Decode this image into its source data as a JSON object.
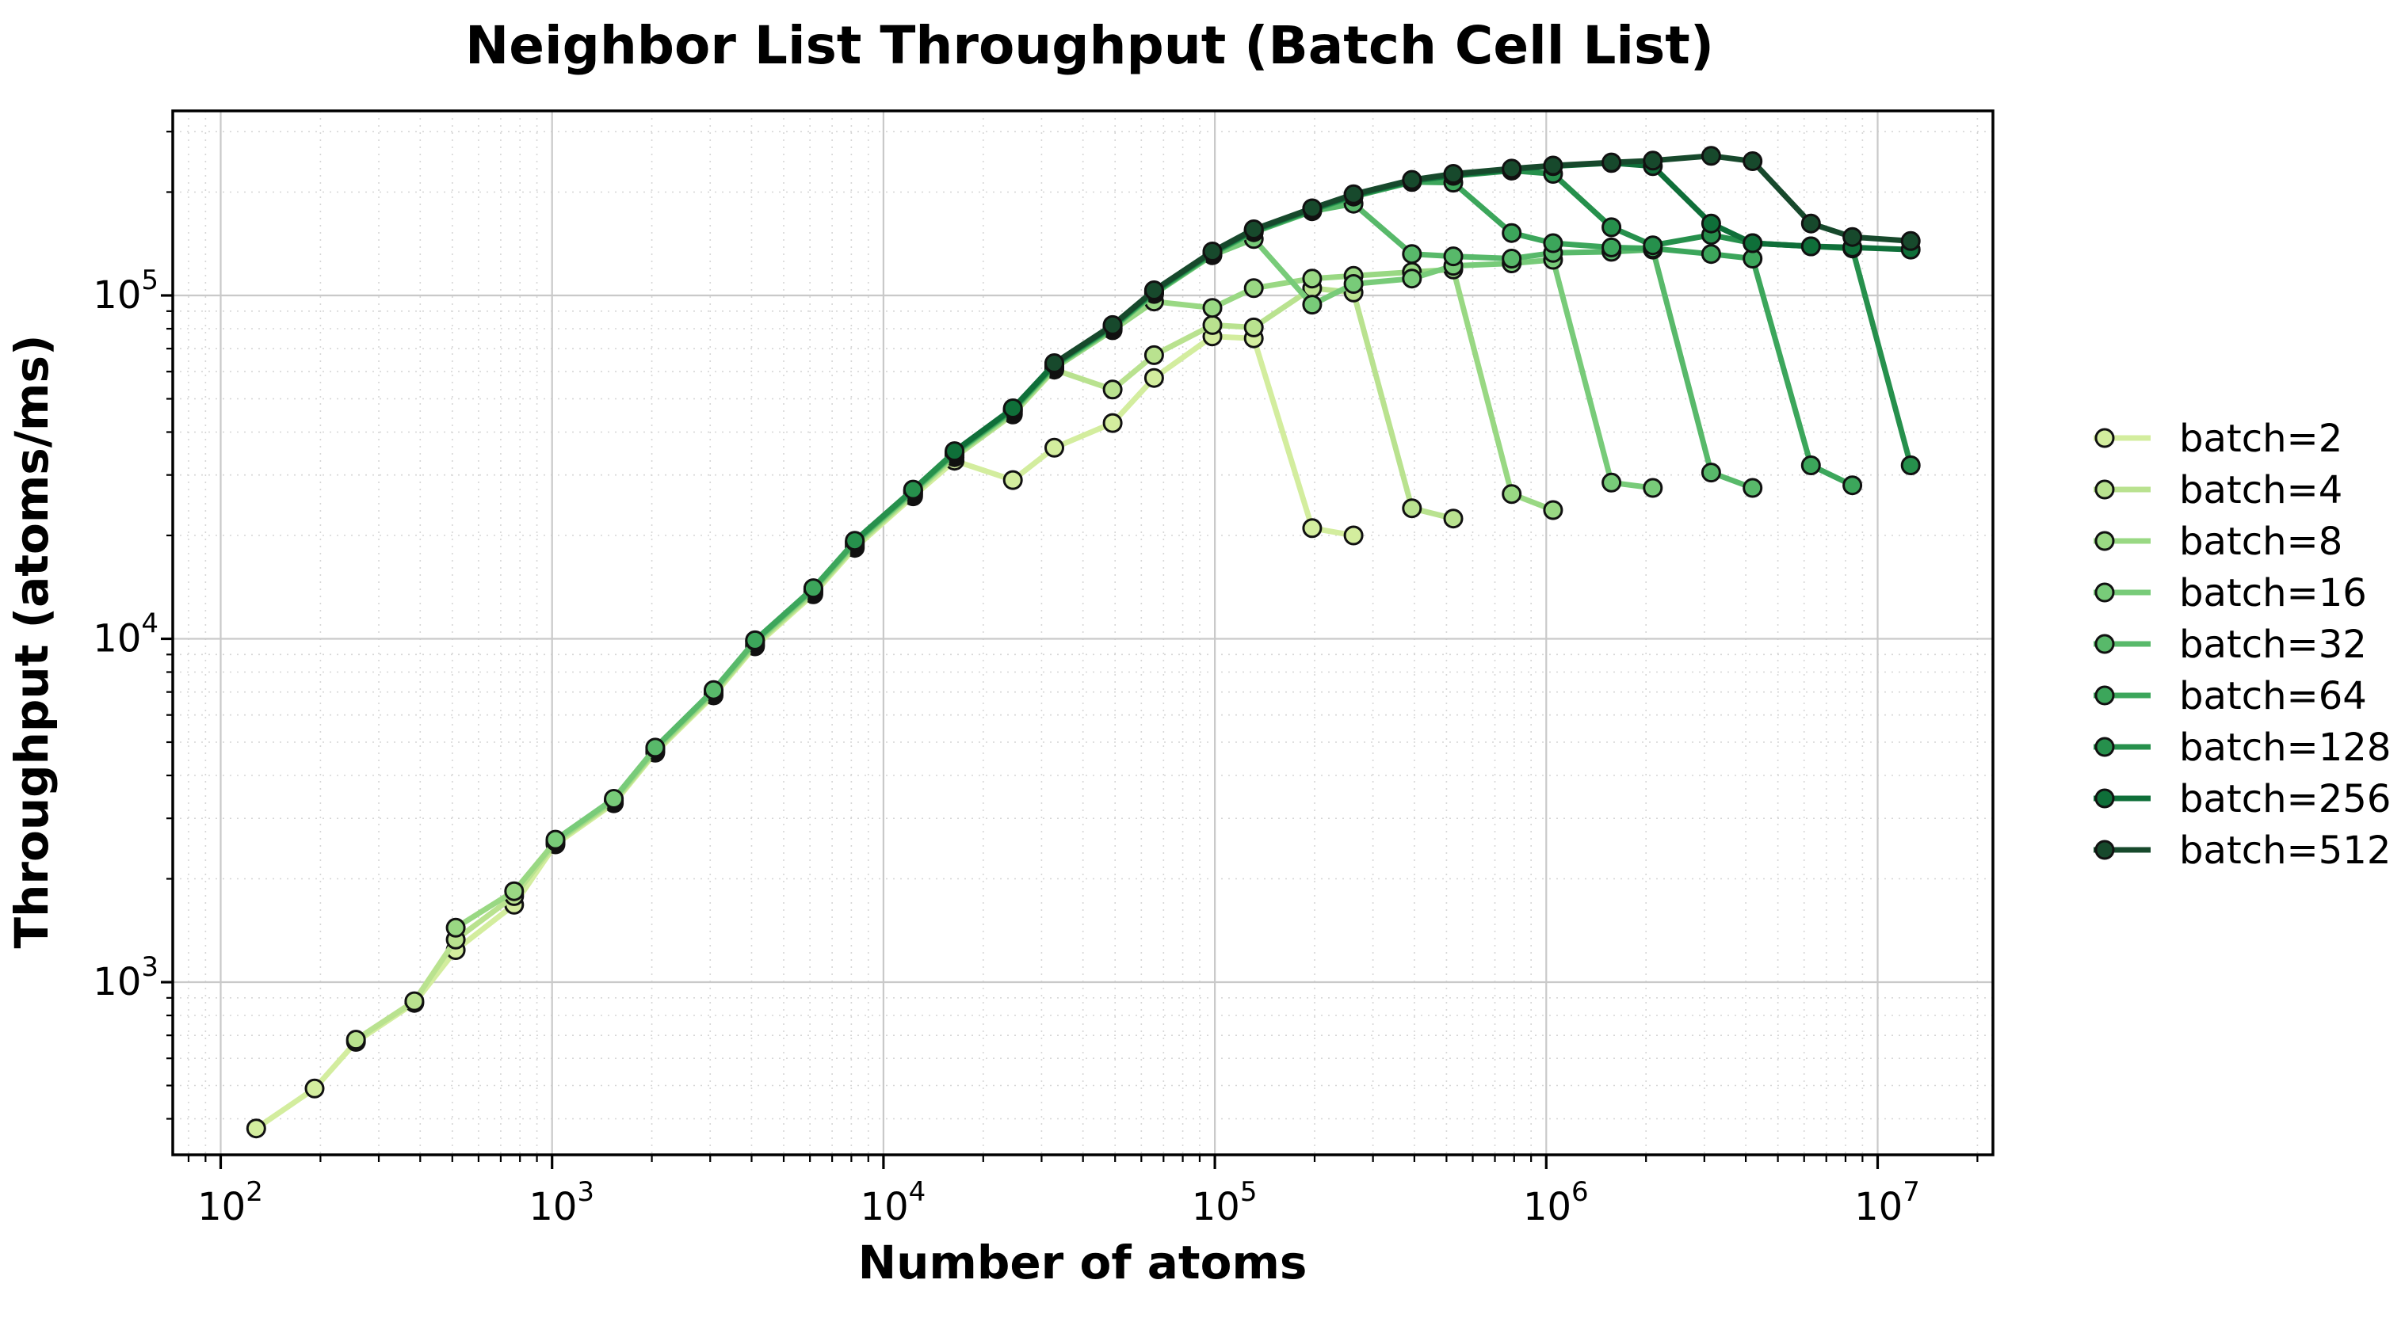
{
  "chart_data": {
    "type": "line",
    "title": "Neighbor List Throughput (Batch Cell List)",
    "xlabel": "Number of atoms",
    "ylabel": "Throughput (atoms/ms)",
    "x_scale": "log",
    "y_scale": "log",
    "xlim": [
      70,
      22300000
    ],
    "ylim": [
      314,
      344000
    ],
    "x_major_tick_exponents": [
      2,
      3,
      4,
      5,
      6,
      7
    ],
    "y_major_tick_exponents": [
      3,
      4,
      5
    ],
    "grid": true,
    "legend_position": "right",
    "series": [
      {
        "name": "batch=2",
        "color": "#d3ed9e",
        "points": [
          [
            128,
            375
          ],
          [
            192,
            490
          ],
          [
            256,
            670
          ],
          [
            384,
            870
          ],
          [
            512,
            1240
          ],
          [
            768,
            1680
          ],
          [
            1024,
            2520
          ],
          [
            1536,
            3320
          ],
          [
            2048,
            4660
          ],
          [
            3072,
            6840
          ],
          [
            4096,
            9510
          ],
          [
            6144,
            13480
          ],
          [
            8192,
            18400
          ],
          [
            12288,
            26000
          ],
          [
            16384,
            33000
          ],
          [
            24576,
            29000
          ],
          [
            32768,
            36000
          ],
          [
            49152,
            42500
          ],
          [
            65536,
            57500
          ],
          [
            98304,
            76000
          ],
          [
            131072,
            75000
          ],
          [
            196608,
            21000
          ],
          [
            262144,
            20000
          ]
        ]
      },
      {
        "name": "batch=4",
        "color": "#b9e28f",
        "points": [
          [
            256,
            680
          ],
          [
            384,
            880
          ],
          [
            512,
            1330
          ],
          [
            768,
            1780
          ],
          [
            1024,
            2550
          ],
          [
            1536,
            3350
          ],
          [
            2048,
            4700
          ],
          [
            3072,
            6910
          ],
          [
            4096,
            9600
          ],
          [
            6144,
            13620
          ],
          [
            8192,
            18600
          ],
          [
            12288,
            26300
          ],
          [
            16384,
            33800
          ],
          [
            24576,
            45000
          ],
          [
            32768,
            60800
          ],
          [
            49152,
            53200
          ],
          [
            65536,
            67000
          ],
          [
            98304,
            82000
          ],
          [
            131072,
            80700
          ],
          [
            196608,
            105000
          ],
          [
            262144,
            102000
          ],
          [
            393216,
            24000
          ],
          [
            524288,
            22400
          ]
        ]
      },
      {
        "name": "batch=8",
        "color": "#99d883",
        "points": [
          [
            512,
            1440
          ],
          [
            768,
            1840
          ],
          [
            1024,
            2570
          ],
          [
            1536,
            3390
          ],
          [
            2048,
            4750
          ],
          [
            3072,
            6980
          ],
          [
            4096,
            9700
          ],
          [
            6144,
            13760
          ],
          [
            8192,
            18800
          ],
          [
            12288,
            26500
          ],
          [
            16384,
            34200
          ],
          [
            24576,
            45500
          ],
          [
            32768,
            61400
          ],
          [
            49152,
            79200
          ],
          [
            65536,
            96000
          ],
          [
            98304,
            92000
          ],
          [
            131072,
            105000
          ],
          [
            196608,
            112000
          ],
          [
            262144,
            114000
          ],
          [
            393216,
            117000
          ],
          [
            524288,
            119000
          ],
          [
            786432,
            26400
          ],
          [
            1048576,
            23700
          ]
        ]
      },
      {
        "name": "batch=16",
        "color": "#78cb79",
        "points": [
          [
            1024,
            2600
          ],
          [
            1536,
            3420
          ],
          [
            2048,
            4800
          ],
          [
            3072,
            7050
          ],
          [
            4096,
            9800
          ],
          [
            6144,
            13900
          ],
          [
            8192,
            19000
          ],
          [
            12288,
            26800
          ],
          [
            16384,
            34500
          ],
          [
            24576,
            46000
          ],
          [
            32768,
            62000
          ],
          [
            49152,
            80000
          ],
          [
            65536,
            101000
          ],
          [
            98304,
            131000
          ],
          [
            131072,
            146000
          ],
          [
            196608,
            94000
          ],
          [
            262144,
            108000
          ],
          [
            393216,
            112000
          ],
          [
            524288,
            122000
          ],
          [
            786432,
            124000
          ],
          [
            1048576,
            127000
          ],
          [
            1572864,
            28500
          ],
          [
            2097152,
            27500
          ]
        ]
      },
      {
        "name": "batch=32",
        "color": "#58b96a",
        "points": [
          [
            2048,
            4820
          ],
          [
            3072,
            7090
          ],
          [
            4096,
            9850
          ],
          [
            6144,
            13970
          ],
          [
            8192,
            19100
          ],
          [
            12288,
            26900
          ],
          [
            16384,
            34700
          ],
          [
            24576,
            46200
          ],
          [
            32768,
            62300
          ],
          [
            49152,
            80400
          ],
          [
            65536,
            101500
          ],
          [
            98304,
            131700
          ],
          [
            131072,
            152800
          ],
          [
            196608,
            175900
          ],
          [
            262144,
            185000
          ],
          [
            393216,
            132000
          ],
          [
            524288,
            130000
          ],
          [
            786432,
            128000
          ],
          [
            1048576,
            133000
          ],
          [
            1572864,
            134000
          ],
          [
            2097152,
            136000
          ],
          [
            3145728,
            30500
          ],
          [
            4194304,
            27500
          ]
        ]
      },
      {
        "name": "batch=64",
        "color": "#3ca65b",
        "points": [
          [
            4096,
            9900
          ],
          [
            6144,
            14040
          ],
          [
            8192,
            19200
          ],
          [
            12288,
            27100
          ],
          [
            16384,
            34800
          ],
          [
            24576,
            46500
          ],
          [
            32768,
            62600
          ],
          [
            49152,
            80800
          ],
          [
            65536,
            102000
          ],
          [
            98304,
            132300
          ],
          [
            131072,
            153500
          ],
          [
            196608,
            176800
          ],
          [
            262144,
            194000
          ],
          [
            393216,
            214000
          ],
          [
            524288,
            213000
          ],
          [
            786432,
            152000
          ],
          [
            1048576,
            142000
          ],
          [
            1572864,
            138000
          ],
          [
            2097152,
            137000
          ],
          [
            3145728,
            132000
          ],
          [
            4194304,
            128000
          ],
          [
            6291456,
            32000
          ],
          [
            8388608,
            28000
          ]
        ]
      },
      {
        "name": "batch=128",
        "color": "#26904c",
        "points": [
          [
            8192,
            19300
          ],
          [
            12288,
            27200
          ],
          [
            16384,
            35000
          ],
          [
            24576,
            46700
          ],
          [
            32768,
            62900
          ],
          [
            49152,
            81200
          ],
          [
            65536,
            102500
          ],
          [
            98304,
            133000
          ],
          [
            131072,
            154300
          ],
          [
            196608,
            177600
          ],
          [
            262144,
            195000
          ],
          [
            393216,
            215000
          ],
          [
            524288,
            223000
          ],
          [
            786432,
            231000
          ],
          [
            1048576,
            226000
          ],
          [
            1572864,
            158000
          ],
          [
            2097152,
            140000
          ],
          [
            3145728,
            150000
          ],
          [
            4194304,
            142000
          ],
          [
            6291456,
            139000
          ],
          [
            8388608,
            137000
          ],
          [
            12582912,
            32000
          ]
        ]
      },
      {
        "name": "batch=256",
        "color": "#0f6f39",
        "points": [
          [
            16384,
            35200
          ],
          [
            24576,
            46900
          ],
          [
            32768,
            63200
          ],
          [
            49152,
            81600
          ],
          [
            65536,
            103000
          ],
          [
            98304,
            133600
          ],
          [
            131072,
            155000
          ],
          [
            196608,
            178500
          ],
          [
            262144,
            196000
          ],
          [
            393216,
            216000
          ],
          [
            524288,
            224000
          ],
          [
            786432,
            233000
          ],
          [
            1048576,
            238000
          ],
          [
            1572864,
            243000
          ],
          [
            2097152,
            238000
          ],
          [
            3145728,
            162000
          ],
          [
            4194304,
            142000
          ],
          [
            6291456,
            139000
          ],
          [
            8388608,
            138000
          ],
          [
            12582912,
            136000
          ]
        ]
      },
      {
        "name": "batch=512",
        "color": "#17492c",
        "points": [
          [
            32768,
            63500
          ],
          [
            49152,
            82000
          ],
          [
            65536,
            103500
          ],
          [
            98304,
            134300
          ],
          [
            131072,
            155800
          ],
          [
            196608,
            179400
          ],
          [
            262144,
            197000
          ],
          [
            393216,
            217000
          ],
          [
            524288,
            226000
          ],
          [
            786432,
            234000
          ],
          [
            1048576,
            239000
          ],
          [
            1572864,
            244000
          ],
          [
            2097152,
            247000
          ],
          [
            3145728,
            255000
          ],
          [
            4194304,
            246000
          ],
          [
            6291456,
            162000
          ],
          [
            8388608,
            148000
          ],
          [
            12582912,
            144000
          ]
        ]
      }
    ]
  },
  "styles": {
    "background": "#ffffff",
    "grid_major_color": "#c9c9c9",
    "grid_minor_color": "#d6d6d6",
    "spine_color": "#000000",
    "marker_edge_color": "#111111"
  }
}
